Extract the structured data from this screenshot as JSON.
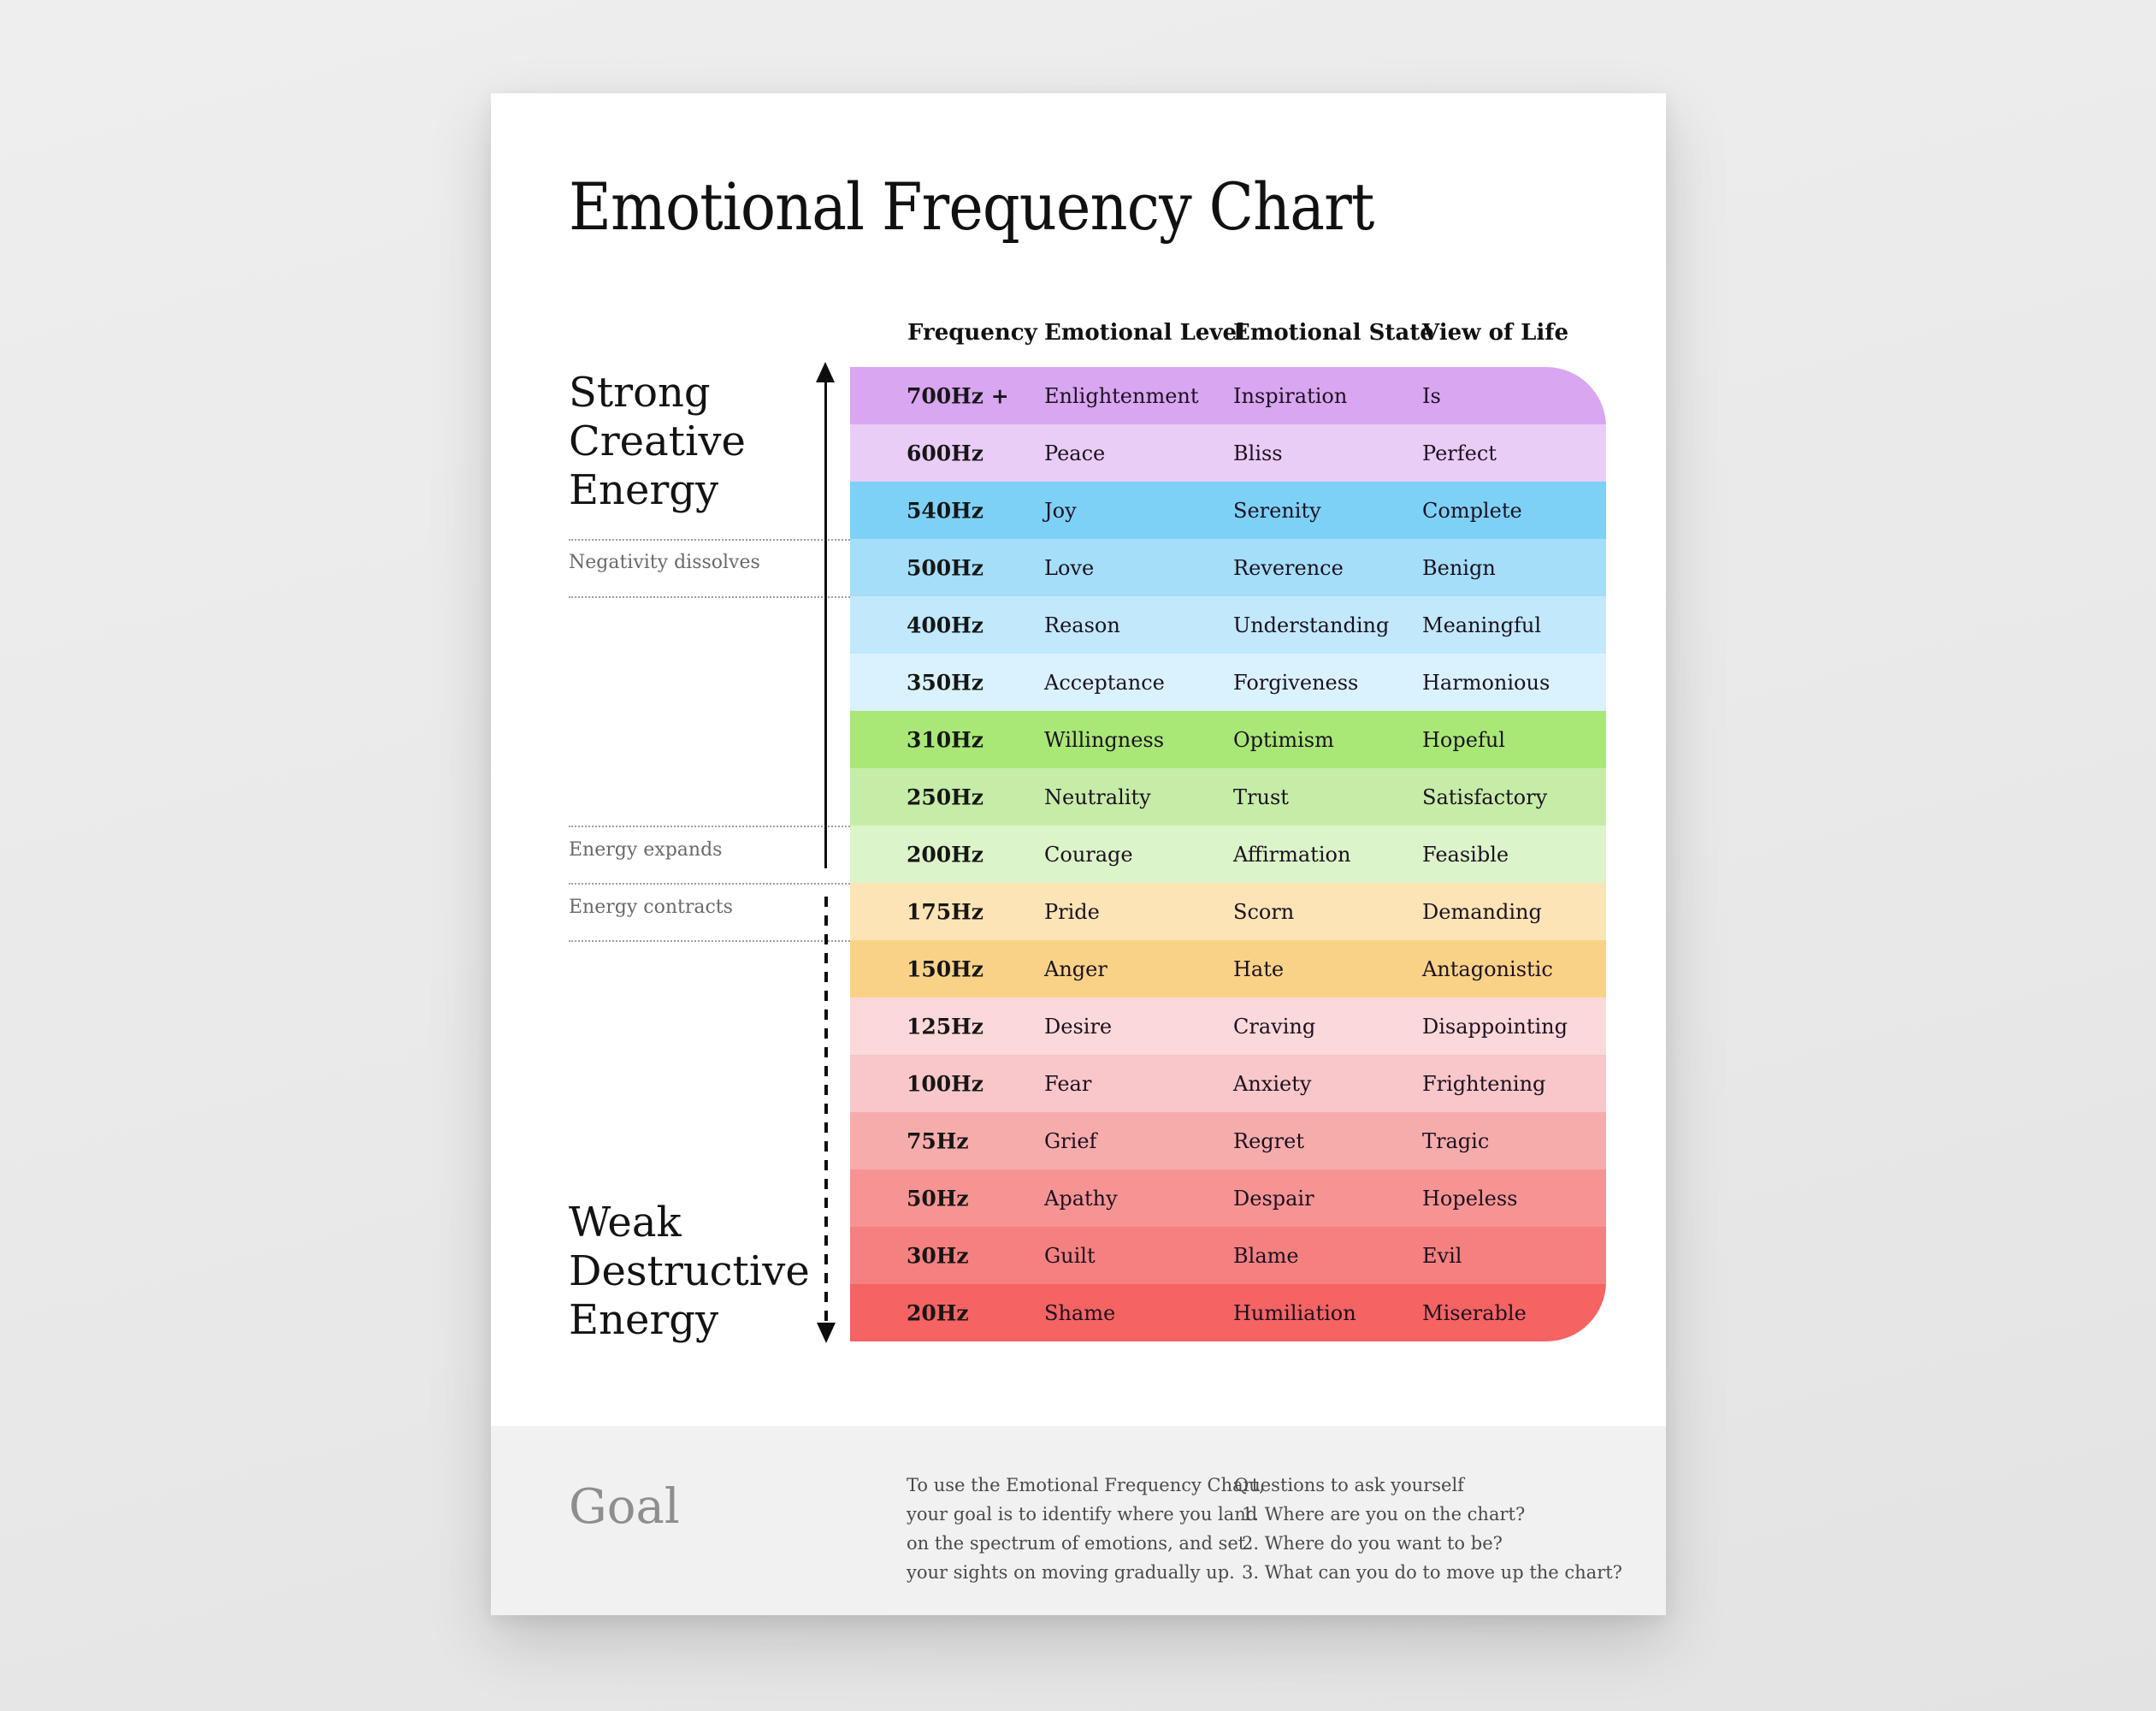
{
  "title": "Emotional Frequency Chart",
  "table": {
    "headers": [
      "Frequency",
      "Emotional Level",
      "Emotional State",
      "View of Life"
    ],
    "rows": [
      {
        "frequency": "700Hz +",
        "level": "Enlightenment",
        "state": "Inspiration",
        "view": "Is",
        "color": "#d9a6f1"
      },
      {
        "frequency": "600Hz",
        "level": "Peace",
        "state": "Bliss",
        "view": "Perfect",
        "color": "#e9cdf6"
      },
      {
        "frequency": "540Hz",
        "level": "Joy",
        "state": "Serenity",
        "view": "Complete",
        "color": "#7ed1f6"
      },
      {
        "frequency": "500Hz",
        "level": "Love",
        "state": "Reverence",
        "view": "Benign",
        "color": "#a4def8"
      },
      {
        "frequency": "400Hz",
        "level": "Reason",
        "state": "Understanding",
        "view": "Meaningful",
        "color": "#c1e9fb"
      },
      {
        "frequency": "350Hz",
        "level": "Acceptance",
        "state": "Forgiveness",
        "view": "Harmonious",
        "color": "#daf2fd"
      },
      {
        "frequency": "310Hz",
        "level": "Willingness",
        "state": "Optimism",
        "view": "Hopeful",
        "color": "#a9e877"
      },
      {
        "frequency": "250Hz",
        "level": "Neutrality",
        "state": "Trust",
        "view": "Satisfactory",
        "color": "#c6eda8"
      },
      {
        "frequency": "200Hz",
        "level": "Courage",
        "state": "Affirmation",
        "view": "Feasible",
        "color": "#dcf4c9"
      },
      {
        "frequency": "175Hz",
        "level": "Pride",
        "state": "Scorn",
        "view": "Demanding",
        "color": "#fce4b6"
      },
      {
        "frequency": "150Hz",
        "level": "Anger",
        "state": "Hate",
        "view": "Antagonistic",
        "color": "#f9d288"
      },
      {
        "frequency": "125Hz",
        "level": "Desire",
        "state": "Craving",
        "view": "Disappointing",
        "color": "#fbd8da"
      },
      {
        "frequency": "100Hz",
        "level": "Fear",
        "state": "Anxiety",
        "view": "Frightening",
        "color": "#f9c7c9"
      },
      {
        "frequency": "75Hz",
        "level": "Grief",
        "state": "Regret",
        "view": "Tragic",
        "color": "#f7acac"
      },
      {
        "frequency": "50Hz",
        "level": "Apathy",
        "state": "Despair",
        "view": "Hopeless",
        "color": "#f69494"
      },
      {
        "frequency": "30Hz",
        "level": "Guilt",
        "state": "Blame",
        "view": "Evil",
        "color": "#f58080"
      },
      {
        "frequency": "20Hz",
        "level": "Shame",
        "state": "Humiliation",
        "view": "Miserable",
        "color": "#f56363"
      }
    ]
  },
  "annotations": {
    "strong_lines": [
      "Strong",
      "Creative",
      "Energy"
    ],
    "weak_lines": [
      "Weak",
      "Destructive",
      "Energy"
    ],
    "negativity_label": "Negativity dissolves",
    "expands_label": "Energy expands",
    "contracts_label": "Energy contracts"
  },
  "footer": {
    "goal_label": "Goal",
    "usage_lines": [
      "To use the Emotional Frequency Chart,",
      "your goal is to identify where you land",
      "on the spectrum of emotions, and set",
      "your sights on moving gradually up."
    ],
    "questions_title": "Questions to ask yourself",
    "questions": [
      "1. Where are you on the chart?",
      "2. Where do you want to be?",
      "3. What can you do to move up the chart?"
    ]
  },
  "colors": {
    "page_background": "#e9e9e9",
    "poster_background": "#ffffff",
    "footer_background": "#f1f1f1",
    "text_primary": "#131313",
    "text_muted": "#696969",
    "goal_text": "#8e8e8e"
  }
}
